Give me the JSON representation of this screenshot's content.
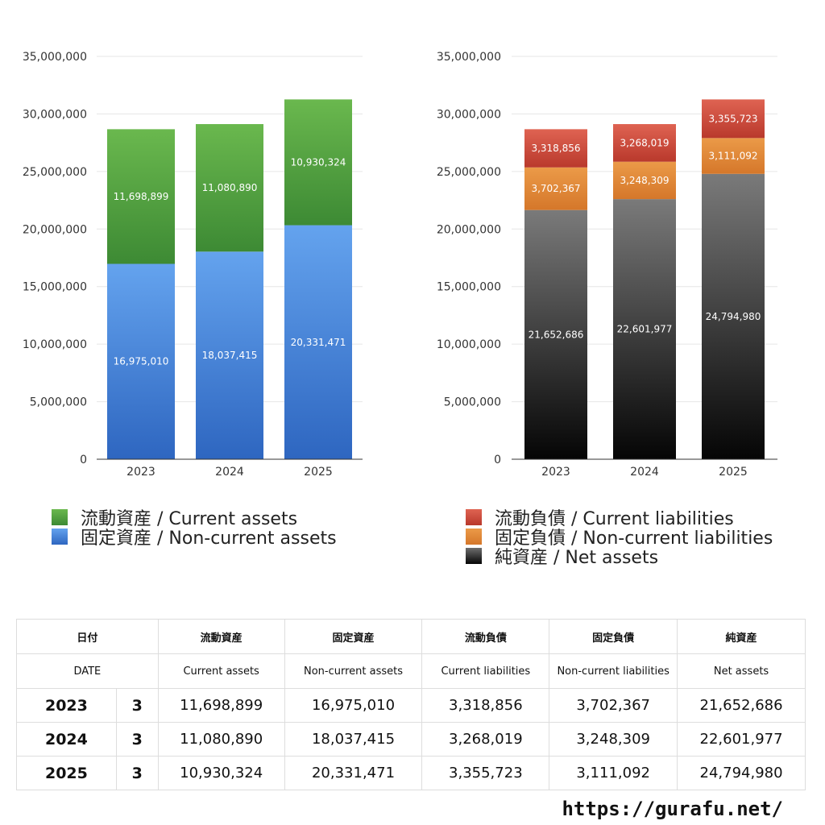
{
  "chart_data": [
    {
      "type": "bar",
      "stacked": true,
      "categories": [
        "2023",
        "2024",
        "2025"
      ],
      "series": [
        {
          "name": "固定資産 / Non-current assets",
          "values": [
            16975010,
            18037415,
            20331471
          ],
          "labels": [
            "16,975,010",
            "18,037,415",
            "20,331,471"
          ],
          "color": "#4a90e2"
        },
        {
          "name": "流動資産 / Current assets",
          "values": [
            11698899,
            11080890,
            10930324
          ],
          "labels": [
            "11,698,899",
            "11,080,890",
            "10,930,324"
          ],
          "color": "#5aa83e"
        }
      ],
      "ylim": [
        0,
        35000000
      ],
      "yticks": [
        "0",
        "5,000,000",
        "10,000,000",
        "15,000,000",
        "20,000,000",
        "25,000,000",
        "30,000,000",
        "35,000,000"
      ],
      "grid": true,
      "legend": "bottom"
    },
    {
      "type": "bar",
      "stacked": true,
      "categories": [
        "2023",
        "2024",
        "2025"
      ],
      "series": [
        {
          "name": "純資産 / Net assets",
          "values": [
            21652686,
            22601977,
            24794980
          ],
          "labels": [
            "21,652,686",
            "22,601,977",
            "24,794,980"
          ],
          "color": "#333333"
        },
        {
          "name": "固定負債 / Non-current liabilities",
          "values": [
            3702367,
            3248309,
            3111092
          ],
          "labels": [
            "3,702,367",
            "3,248,309",
            "3,111,092"
          ],
          "color": "#e08a38"
        },
        {
          "name": "流動負債 / Current liabilities",
          "values": [
            3318856,
            3268019,
            3355723
          ],
          "labels": [
            "3,318,856",
            "3,268,019",
            "3,355,723"
          ],
          "color": "#d24a3c"
        }
      ],
      "ylim": [
        0,
        35000000
      ],
      "yticks": [
        "0",
        "5,000,000",
        "10,000,000",
        "15,000,000",
        "20,000,000",
        "25,000,000",
        "30,000,000",
        "35,000,000"
      ],
      "grid": true,
      "legend": "bottom"
    }
  ],
  "legend_left": [
    {
      "label": "流動資産 / Current assets",
      "color": "#5aa83e"
    },
    {
      "label": "固定資産 / Non-current assets",
      "color": "#4a90e2"
    }
  ],
  "legend_right": [
    {
      "label": "流動負債 / Current liabilities",
      "color": "#d24a3c"
    },
    {
      "label": "固定負債 / Non-current liabilities",
      "color": "#e08a38"
    },
    {
      "label": "純資産 / Net assets",
      "color": "#222222"
    }
  ],
  "table": {
    "header_jp": [
      "日付",
      "流動資産",
      "固定資産",
      "流動負債",
      "固定負債",
      "純資産"
    ],
    "header_en": [
      "DATE",
      "Current assets",
      "Non-current assets",
      "Current liabilities",
      "Non-current liabilities",
      "Net assets"
    ],
    "rows": [
      {
        "year": "2023",
        "month": "3",
        "cells": [
          "11,698,899",
          "16,975,010",
          "3,318,856",
          "3,702,367",
          "21,652,686"
        ]
      },
      {
        "year": "2024",
        "month": "3",
        "cells": [
          "11,080,890",
          "18,037,415",
          "3,268,019",
          "3,248,309",
          "22,601,977"
        ]
      },
      {
        "year": "2025",
        "month": "3",
        "cells": [
          "10,930,324",
          "20,331,471",
          "3,355,723",
          "3,111,092",
          "24,794,980"
        ]
      }
    ]
  },
  "source": "https://gurafu.net/"
}
